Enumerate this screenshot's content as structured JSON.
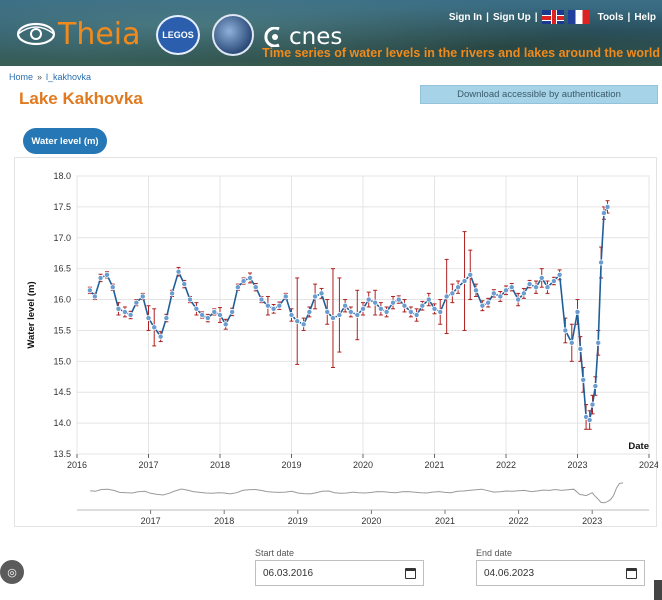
{
  "header": {
    "brand": "Theia",
    "legos_label": "LEGOS",
    "cnes_label": "cnes",
    "links": [
      "Sign In",
      "Sign Up",
      "Tools",
      "Help"
    ],
    "tagline": "Time series of water levels in the rivers and lakes around the world",
    "accent_color": "#f08a1c"
  },
  "breadcrumb": {
    "home": "Home",
    "separator": "»",
    "current": "l_kakhovka"
  },
  "page_title": "Lake Kakhovka",
  "download_label": "Download accessible by authentication",
  "tab_label": "Water level (m)",
  "form": {
    "start_label": "Start date",
    "start_value": "06.03.2016",
    "end_label": "End date",
    "end_value": "04.06.2023"
  },
  "chart_data": {
    "type": "line",
    "ylabel": "Water level (m)",
    "xlabel": "Date",
    "ylim": [
      13.5,
      18.0
    ],
    "xlim": [
      2016,
      2024
    ],
    "y_ticks": [
      "13.5",
      "14.0",
      "14.5",
      "15.0",
      "15.5",
      "16.0",
      "16.5",
      "17.0",
      "17.5",
      "18.0"
    ],
    "x_ticks": [
      "2016",
      "2017",
      "2018",
      "2019",
      "2020",
      "2021",
      "2022",
      "2023",
      "2024"
    ],
    "navigator_ticks": [
      "2017",
      "2018",
      "2019",
      "2020",
      "2021",
      "2022",
      "2023"
    ],
    "grid": true,
    "line_color": "#1f5f99",
    "marker_color": "#6b9ccf",
    "error_color": "#b02020",
    "series": [
      {
        "x": [
          2016.18,
          2016.25,
          2016.33,
          2016.42,
          2016.5,
          2016.58,
          2016.67,
          2016.75,
          2016.83,
          2016.92,
          2017.0,
          2017.08,
          2017.17,
          2017.25,
          2017.33,
          2017.42,
          2017.5,
          2017.58,
          2017.67,
          2017.75,
          2017.83,
          2017.92,
          2018.0,
          2018.08,
          2018.17,
          2018.25,
          2018.33,
          2018.42,
          2018.5,
          2018.58,
          2018.67,
          2018.75,
          2018.83,
          2018.92,
          2019.0,
          2019.08,
          2019.17,
          2019.25,
          2019.33,
          2019.42,
          2019.5,
          2019.58,
          2019.67,
          2019.75,
          2019.83,
          2019.92,
          2020.0,
          2020.08,
          2020.17,
          2020.25,
          2020.33,
          2020.42,
          2020.5,
          2020.58,
          2020.67,
          2020.75,
          2020.83,
          2020.92,
          2021.0,
          2021.08,
          2021.17,
          2021.25,
          2021.33,
          2021.42,
          2021.5,
          2021.58,
          2021.67,
          2021.75,
          2021.83,
          2021.92,
          2022.0,
          2022.08,
          2022.17,
          2022.25,
          2022.33,
          2022.42,
          2022.5,
          2022.58,
          2022.67,
          2022.75,
          2022.83,
          2022.92,
          2023.0,
          2023.04,
          2023.08,
          2023.12,
          2023.17,
          2023.21,
          2023.25,
          2023.29,
          2023.33,
          2023.37,
          2023.42
        ],
        "y": [
          16.15,
          16.05,
          16.35,
          16.4,
          16.2,
          15.85,
          15.8,
          15.75,
          15.95,
          16.05,
          15.7,
          15.55,
          15.4,
          15.7,
          16.1,
          16.45,
          16.25,
          16.0,
          15.85,
          15.75,
          15.7,
          15.8,
          15.75,
          15.6,
          15.8,
          16.2,
          16.3,
          16.35,
          16.2,
          16.0,
          15.9,
          15.85,
          15.9,
          16.05,
          15.75,
          15.65,
          15.6,
          15.8,
          16.05,
          16.1,
          15.8,
          15.7,
          15.75,
          15.9,
          15.8,
          15.75,
          15.85,
          16.0,
          15.95,
          15.85,
          15.8,
          15.95,
          16.0,
          15.9,
          15.8,
          15.75,
          15.9,
          16.0,
          15.85,
          15.8,
          16.05,
          16.1,
          16.2,
          16.3,
          16.4,
          16.15,
          15.9,
          15.95,
          16.1,
          16.05,
          16.15,
          16.2,
          16.0,
          16.1,
          16.25,
          16.2,
          16.35,
          16.2,
          16.3,
          16.4,
          15.5,
          15.3,
          15.8,
          15.2,
          14.7,
          14.1,
          14.05,
          14.3,
          14.6,
          15.3,
          16.6,
          17.4,
          17.5
        ],
        "err": [
          0.05,
          0.05,
          0.06,
          0.05,
          0.05,
          0.1,
          0.08,
          0.06,
          0.05,
          0.05,
          0.2,
          0.3,
          0.08,
          0.06,
          0.05,
          0.07,
          0.06,
          0.05,
          0.1,
          0.05,
          0.06,
          0.05,
          0.12,
          0.08,
          0.06,
          0.05,
          0.05,
          0.08,
          0.06,
          0.05,
          0.15,
          0.07,
          0.06,
          0.05,
          0.1,
          0.7,
          0.1,
          0.08,
          0.2,
          0.08,
          0.2,
          0.8,
          0.6,
          0.1,
          0.08,
          0.4,
          0.1,
          0.12,
          0.2,
          0.1,
          0.08,
          0.1,
          0.06,
          0.1,
          0.08,
          0.1,
          0.07,
          0.1,
          0.08,
          0.2,
          0.6,
          0.15,
          0.1,
          0.8,
          0.4,
          0.1,
          0.08,
          0.07,
          0.06,
          0.08,
          0.07,
          0.06,
          0.1,
          0.08,
          0.06,
          0.1,
          0.15,
          0.1,
          0.06,
          0.08,
          0.2,
          0.3,
          0.2,
          0.2,
          0.2,
          0.2,
          0.15,
          0.15,
          0.15,
          0.2,
          0.25,
          0.1,
          0.1
        ]
      }
    ]
  }
}
